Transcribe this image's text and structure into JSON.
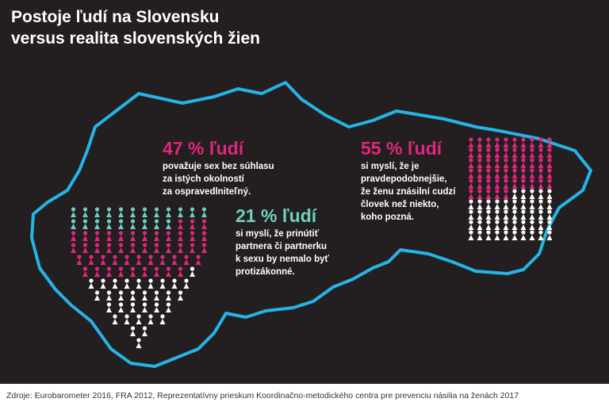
{
  "header": {
    "title": [
      "Postoje ľudí na Slovensku",
      "versus realita slovenských žien"
    ]
  },
  "stats": [
    {
      "value": 47,
      "label": "47 % ľudí",
      "color": "#e0267d",
      "lines": [
        "považuje sex bez súhlasu",
        "za istých okolností",
        "za ospravedlniteľný."
      ]
    },
    {
      "value": 21,
      "label": "21 % ľudí",
      "color": "#6fd0c0",
      "lines": [
        "si myslí, že prinútiť",
        "partnera či partnerku",
        "k sexu by nemalo byť",
        "protizákonné."
      ]
    },
    {
      "value": 55,
      "label": "55 % ľudí",
      "color": "#e0267d",
      "lines": [
        "si myslí, že je",
        "pravdepodobnejšie,",
        "že ženu znásilní cudzí",
        "človek než niekto,",
        "koho pozná."
      ]
    }
  ],
  "source": "Zdroje: Eurobarometer 2016, FRA 2012, Reprezentatívny prieskum Koordinačno-metodického centra pre prevenciu násilia na ženách 2017"
}
